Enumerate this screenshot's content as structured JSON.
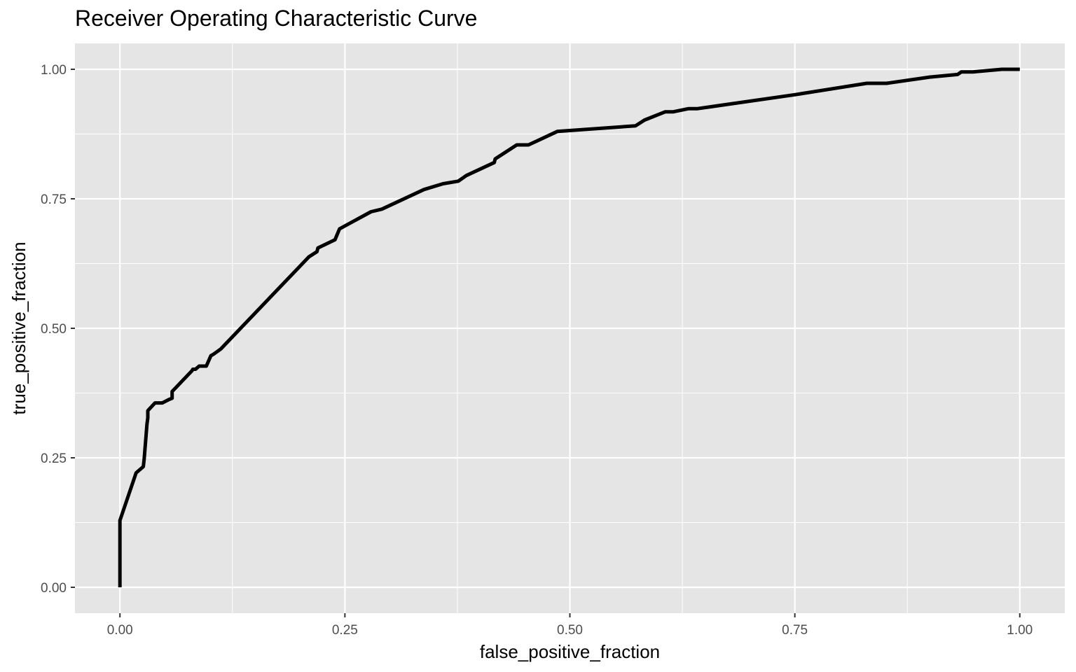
{
  "chart_data": {
    "type": "line",
    "title": "Receiver Operating Characteristic Curve",
    "xlabel": "false_positive_fraction",
    "ylabel": "true_positive_fraction",
    "xlim": [
      -0.05,
      1.05
    ],
    "ylim": [
      -0.05,
      1.05
    ],
    "x_ticks": [
      {
        "value": 0.0,
        "label": "0.00"
      },
      {
        "value": 0.25,
        "label": "0.25"
      },
      {
        "value": 0.5,
        "label": "0.50"
      },
      {
        "value": 0.75,
        "label": "0.75"
      },
      {
        "value": 1.0,
        "label": "1.00"
      }
    ],
    "y_ticks": [
      {
        "value": 0.0,
        "label": "0.00"
      },
      {
        "value": 0.25,
        "label": "0.25"
      },
      {
        "value": 0.5,
        "label": "0.50"
      },
      {
        "value": 0.75,
        "label": "0.75"
      },
      {
        "value": 1.0,
        "label": "1.00"
      }
    ],
    "grid": true,
    "background": "#e5e5e5",
    "grid_color": "#ffffff",
    "line_color": "#000000",
    "series": [
      {
        "x": [
          0.0,
          0.0,
          0.018,
          0.026,
          0.027,
          0.03,
          0.031,
          0.031,
          0.039,
          0.047,
          0.055,
          0.058,
          0.058,
          0.08,
          0.081,
          0.084,
          0.088,
          0.096,
          0.101,
          0.104,
          0.112,
          0.21,
          0.219,
          0.22,
          0.239,
          0.244,
          0.279,
          0.291,
          0.338,
          0.359,
          0.376,
          0.385,
          0.416,
          0.417,
          0.441,
          0.454,
          0.486,
          0.573,
          0.583,
          0.606,
          0.615,
          0.632,
          0.642,
          0.75,
          0.83,
          0.852,
          0.9,
          0.931,
          0.935,
          0.948,
          0.98,
          1.0
        ],
        "y": [
          0.0,
          0.129,
          0.221,
          0.233,
          0.249,
          0.315,
          0.327,
          0.341,
          0.356,
          0.356,
          0.363,
          0.365,
          0.378,
          0.418,
          0.421,
          0.421,
          0.427,
          0.427,
          0.447,
          0.45,
          0.46,
          0.638,
          0.648,
          0.655,
          0.671,
          0.692,
          0.725,
          0.73,
          0.768,
          0.779,
          0.784,
          0.795,
          0.82,
          0.827,
          0.854,
          0.854,
          0.88,
          0.891,
          0.902,
          0.918,
          0.918,
          0.924,
          0.924,
          0.951,
          0.973,
          0.973,
          0.985,
          0.99,
          0.995,
          0.995,
          1.0,
          1.0
        ]
      }
    ]
  }
}
